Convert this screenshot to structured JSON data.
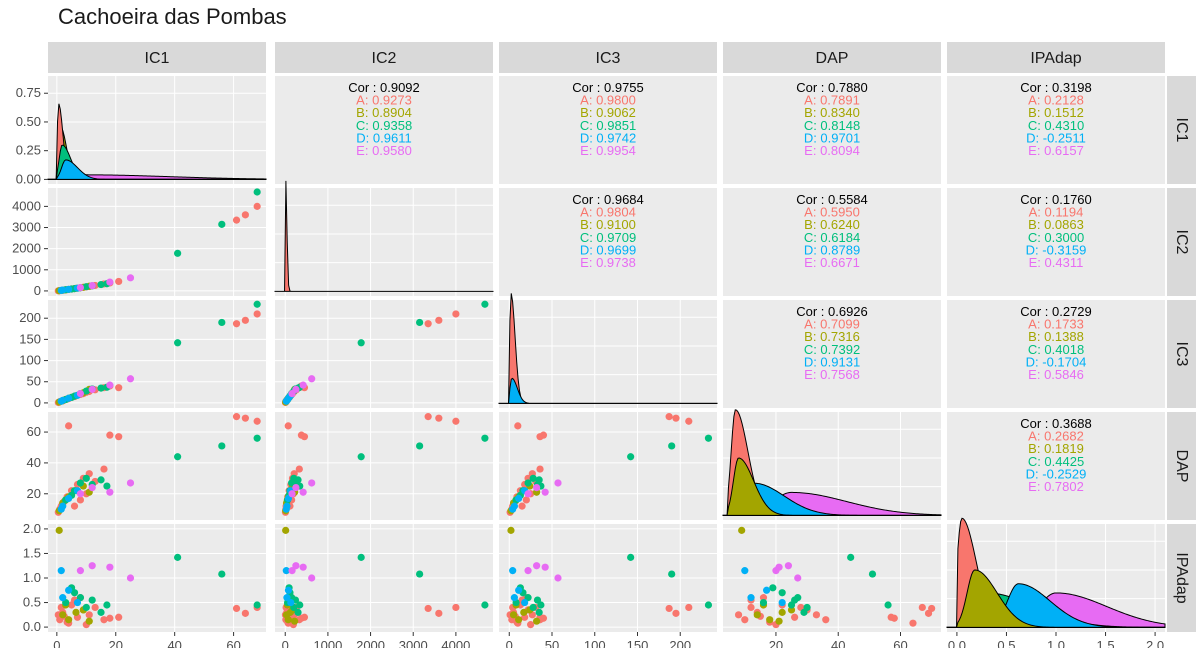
{
  "chart_data": {
    "type": "scatter",
    "title": "Cachoeira das Pombas",
    "variables": [
      "IC1",
      "IC2",
      "IC3",
      "DAP",
      "IPAdap"
    ],
    "groups": [
      "A",
      "B",
      "C",
      "D",
      "E"
    ],
    "group_colors": [
      "#F8766D",
      "#A3A500",
      "#00BF7D",
      "#00B0F6",
      "#E76BF3"
    ],
    "panel_bg": "#EBEBEB",
    "strip_bg": "#D9D9D9",
    "grid": true,
    "axes": {
      "IC1": {
        "lim": [
          -3,
          71
        ],
        "ticks": [
          0,
          20,
          40,
          60
        ]
      },
      "IC2": {
        "lim": [
          -240,
          4870
        ],
        "ticks": [
          0,
          1000,
          2000,
          3000,
          4000
        ]
      },
      "IC3": {
        "lim": [
          -12,
          243
        ],
        "ticks": [
          0,
          50,
          100,
          150,
          200
        ]
      },
      "DAP": {
        "lim": [
          3,
          73
        ],
        "ticks": [
          20,
          40,
          60
        ]
      },
      "IPAdap": {
        "lim": [
          -0.1,
          2.1
        ],
        "ticks": [
          0.0,
          0.5,
          1.0,
          1.5,
          2.0
        ],
        "tick_labels": [
          "0.0",
          "0.5",
          "1.0",
          "1.5",
          "2.0"
        ]
      }
    },
    "diag_density_axis": {
      "lim": [
        -0.04,
        0.9
      ],
      "ticks": [
        0.0,
        0.25,
        0.5,
        0.75
      ],
      "tick_labels": [
        "0.00",
        "0.25",
        "0.50",
        "0.75"
      ]
    },
    "correlations": [
      {
        "row": "IC1",
        "col": "IC2",
        "lines": [
          "Cor : 0.9092",
          "A: 0.9273",
          "B: 0.8904",
          "C: 0.9358",
          "D: 0.9611",
          "E: 0.9580"
        ]
      },
      {
        "row": "IC1",
        "col": "IC3",
        "lines": [
          "Cor : 0.9755",
          "A: 0.9800",
          "B: 0.9062",
          "C: 0.9851",
          "D: 0.9742",
          "E: 0.9954"
        ]
      },
      {
        "row": "IC1",
        "col": "DAP",
        "lines": [
          "Cor : 0.7880",
          "A: 0.7891",
          "B: 0.8340",
          "C: 0.8148",
          "D: 0.9701",
          "E: 0.8094"
        ]
      },
      {
        "row": "IC1",
        "col": "IPAdap",
        "lines": [
          "Cor : 0.3198",
          "A: 0.2128",
          "B: 0.1512",
          "C: 0.4310",
          "D: -0.2511",
          "E: 0.6157"
        ]
      },
      {
        "row": "IC2",
        "col": "IC3",
        "lines": [
          "Cor : 0.9684",
          "A: 0.9804",
          "B: 0.9100",
          "C: 0.9709",
          "D: 0.9699",
          "E: 0.9738"
        ]
      },
      {
        "row": "IC2",
        "col": "DAP",
        "lines": [
          "Cor : 0.5584",
          "A: 0.5950",
          "B: 0.6240",
          "C: 0.6184",
          "D: 0.8789",
          "E: 0.6671"
        ]
      },
      {
        "row": "IC2",
        "col": "IPAdap",
        "lines": [
          "Cor : 0.1760",
          "A: 0.1194",
          "B: 0.0863",
          "C: 0.3000",
          "D: -0.3159",
          "E: 0.4311"
        ]
      },
      {
        "row": "IC3",
        "col": "DAP",
        "lines": [
          "Cor : 0.6926",
          "A: 0.7099",
          "B: 0.7316",
          "C: 0.7392",
          "D: 0.9131",
          "E: 0.7568"
        ]
      },
      {
        "row": "IC3",
        "col": "IPAdap",
        "lines": [
          "Cor : 0.2729",
          "A: 0.1733",
          "B: 0.1388",
          "C: 0.4018",
          "D: -0.1704",
          "E: 0.5846"
        ]
      },
      {
        "row": "DAP",
        "col": "IPAdap",
        "lines": [
          "Cor : 0.3688",
          "A: 0.2682",
          "B: 0.1819",
          "C: 0.4425",
          "D: -0.2529",
          "E: 0.7802"
        ]
      }
    ],
    "points": [
      {
        "g": "A",
        "IC1": 1.0,
        "IC2": 15,
        "IC3": 3,
        "DAP": 10,
        "IPAdap": 0.15
      },
      {
        "g": "A",
        "IC1": 2.0,
        "IC2": 35,
        "IC3": 5,
        "DAP": 14,
        "IPAdap": 0.3
      },
      {
        "g": "A",
        "IC1": 3.5,
        "IC2": 60,
        "IC3": 9,
        "DAP": 18,
        "IPAdap": 0.1
      },
      {
        "g": "A",
        "IC1": 5.0,
        "IC2": 90,
        "IC3": 13,
        "DAP": 22,
        "IPAdap": 0.45
      },
      {
        "g": "A",
        "IC1": 7.0,
        "IC2": 130,
        "IC3": 18,
        "DAP": 26,
        "IPAdap": 0.2
      },
      {
        "g": "A",
        "IC1": 9.0,
        "IC2": 170,
        "IC3": 22,
        "DAP": 30,
        "IPAdap": 0.35
      },
      {
        "g": "A",
        "IC1": 11.0,
        "IC2": 210,
        "IC3": 27,
        "DAP": 33,
        "IPAdap": 0.25
      },
      {
        "g": "A",
        "IC1": 13.0,
        "IC2": 260,
        "IC3": 31,
        "DAP": 28,
        "IPAdap": 0.4
      },
      {
        "g": "A",
        "IC1": 16.0,
        "IC2": 330,
        "IC3": 36,
        "DAP": 36,
        "IPAdap": 0.15
      },
      {
        "g": "A",
        "IC1": 18.0,
        "IC2": 380,
        "IC3": 40,
        "DAP": 58,
        "IPAdap": 0.18
      },
      {
        "g": "A",
        "IC1": 21.0,
        "IC2": 450,
        "IC3": 36,
        "DAP": 57,
        "IPAdap": 0.2
      },
      {
        "g": "A",
        "IC1": 4.0,
        "IC2": 70,
        "IC3": 10,
        "DAP": 64,
        "IPAdap": 0.08
      },
      {
        "g": "A",
        "IC1": 6.0,
        "IC2": 110,
        "IC3": 15,
        "DAP": 12,
        "IPAdap": 0.55
      },
      {
        "g": "A",
        "IC1": 8.0,
        "IC2": 150,
        "IC3": 20,
        "DAP": 16,
        "IPAdap": 0.6
      },
      {
        "g": "A",
        "IC1": 10.0,
        "IC2": 190,
        "IC3": 25,
        "DAP": 20,
        "IPAdap": 0.05
      },
      {
        "g": "A",
        "IC1": 0.5,
        "IC2": 5,
        "IC3": 1,
        "DAP": 8,
        "IPAdap": 0.25
      },
      {
        "g": "A",
        "IC1": 1.5,
        "IC2": 20,
        "IC3": 4,
        "DAP": 12,
        "IPAdap": 0.4
      },
      {
        "g": "A",
        "IC1": 2.5,
        "IC2": 45,
        "IC3": 7,
        "DAP": 15,
        "IPAdap": 0.22
      },
      {
        "g": "A",
        "IC1": 61.0,
        "IC2": 3350,
        "IC3": 187,
        "DAP": 70,
        "IPAdap": 0.38
      },
      {
        "g": "A",
        "IC1": 64.0,
        "IC2": 3600,
        "IC3": 195,
        "DAP": 69,
        "IPAdap": 0.28
      },
      {
        "g": "A",
        "IC1": 68.0,
        "IC2": 4000,
        "IC3": 210,
        "DAP": 67,
        "IPAdap": 0.4
      },
      {
        "g": "B",
        "IC1": 2.0,
        "IC2": 30,
        "IC3": 5,
        "DAP": 14,
        "IPAdap": 0.25
      },
      {
        "g": "B",
        "IC1": 4.0,
        "IC2": 70,
        "IC3": 11,
        "DAP": 18,
        "IPAdap": 0.15
      },
      {
        "g": "B",
        "IC1": 6.5,
        "IC2": 120,
        "IC3": 17,
        "DAP": 22,
        "IPAdap": 0.3
      },
      {
        "g": "B",
        "IC1": 9.0,
        "IC2": 170,
        "IC3": 24,
        "DAP": 25,
        "IPAdap": 0.35
      },
      {
        "g": "B",
        "IC1": 11.0,
        "IC2": 220,
        "IC3": 32,
        "DAP": 21,
        "IPAdap": 0.12
      },
      {
        "g": "B",
        "IC1": 3.0,
        "IC2": 50,
        "IC3": 8,
        "DAP": 16,
        "IPAdap": 0.45
      },
      {
        "g": "B",
        "IC1": 0.8,
        "IC2": 10,
        "IC3": 2,
        "DAP": 9,
        "IPAdap": 1.97
      },
      {
        "g": "C",
        "IC1": 3.0,
        "IC2": 55,
        "IC3": 8,
        "DAP": 16,
        "IPAdap": 0.5
      },
      {
        "g": "C",
        "IC1": 6.0,
        "IC2": 110,
        "IC3": 16,
        "DAP": 22,
        "IPAdap": 0.7
      },
      {
        "g": "C",
        "IC1": 8.0,
        "IC2": 150,
        "IC3": 22,
        "DAP": 27,
        "IPAdap": 0.6
      },
      {
        "g": "C",
        "IC1": 10.0,
        "IC2": 200,
        "IC3": 28,
        "DAP": 30,
        "IPAdap": 0.4
      },
      {
        "g": "C",
        "IC1": 12.0,
        "IC2": 240,
        "IC3": 33,
        "DAP": 26,
        "IPAdap": 0.55
      },
      {
        "g": "C",
        "IC1": 15.0,
        "IC2": 300,
        "IC3": 35,
        "DAP": 29,
        "IPAdap": 0.3
      },
      {
        "g": "C",
        "IC1": 17.0,
        "IC2": 340,
        "IC3": 37,
        "DAP": 25,
        "IPAdap": 0.45
      },
      {
        "g": "C",
        "IC1": 41.0,
        "IC2": 1780,
        "IC3": 142,
        "DAP": 44,
        "IPAdap": 1.42
      },
      {
        "g": "C",
        "IC1": 56.0,
        "IC2": 3150,
        "IC3": 190,
        "DAP": 51,
        "IPAdap": 1.08
      },
      {
        "g": "C",
        "IC1": 68.0,
        "IC2": 4680,
        "IC3": 233,
        "DAP": 56,
        "IPAdap": 0.45
      },
      {
        "g": "C",
        "IC1": 5.0,
        "IC2": 90,
        "IC3": 13,
        "DAP": 19,
        "IPAdap": 0.8
      },
      {
        "g": "D",
        "IC1": 2.0,
        "IC2": 40,
        "IC3": 6,
        "DAP": 12,
        "IPAdap": 0.6
      },
      {
        "g": "D",
        "IC1": 4.0,
        "IC2": 75,
        "IC3": 11,
        "DAP": 17,
        "IPAdap": 0.75
      },
      {
        "g": "D",
        "IC1": 7.0,
        "IC2": 130,
        "IC3": 18,
        "DAP": 22,
        "IPAdap": 0.5
      },
      {
        "g": "D",
        "IC1": 1.5,
        "IC2": 25,
        "IC3": 4,
        "DAP": 10,
        "IPAdap": 1.15
      },
      {
        "g": "E",
        "IC1": 12.0,
        "IC2": 250,
        "IC3": 32,
        "DAP": 24,
        "IPAdap": 1.25
      },
      {
        "g": "E",
        "IC1": 18.0,
        "IC2": 420,
        "IC3": 42,
        "DAP": 21,
        "IPAdap": 1.22
      },
      {
        "g": "E",
        "IC1": 25.0,
        "IC2": 620,
        "IC3": 57,
        "DAP": 27,
        "IPAdap": 1.0
      },
      {
        "g": "E",
        "IC1": 8.0,
        "IC2": 160,
        "IC3": 22,
        "DAP": 20,
        "IPAdap": 1.15
      }
    ],
    "densities": {
      "IC1": [
        {
          "g": "A",
          "peak_x": 0.6,
          "height": 0.66,
          "sd": 0.9
        },
        {
          "g": "B",
          "peak_x": 1.2,
          "height": 0.46,
          "sd": 1.3
        },
        {
          "g": "C",
          "peak_x": 1.8,
          "height": 0.3,
          "sd": 1.8
        },
        {
          "g": "D",
          "peak_x": 3.0,
          "height": 0.17,
          "sd": 2.5
        },
        {
          "g": "E",
          "peak_x": 9.0,
          "height": 0.04,
          "sd": 18.0
        }
      ],
      "IC2": [
        {
          "g": "A",
          "peak_x": 10,
          "height": 0.98,
          "sd": 18
        }
      ],
      "IC3": [
        {
          "g": "A",
          "peak_x": 2,
          "height": 0.96,
          "sd": 3
        },
        {
          "g": "D",
          "peak_x": 3,
          "height": 0.22,
          "sd": 4
        }
      ],
      "DAP": [
        {
          "g": "A",
          "peak_x": 7,
          "height": 0.92,
          "sd": 2.5
        },
        {
          "g": "B",
          "peak_x": 8,
          "height": 0.5,
          "sd": 3.0
        },
        {
          "g": "D",
          "peak_x": 13,
          "height": 0.28,
          "sd": 6.0
        },
        {
          "g": "E",
          "peak_x": 25,
          "height": 0.2,
          "sd": 11.0
        }
      ],
      "IPAdap": [
        {
          "g": "A",
          "peak_x": 0.05,
          "height": 0.95,
          "sd": 0.09
        },
        {
          "g": "B",
          "peak_x": 0.18,
          "height": 0.5,
          "sd": 0.14
        },
        {
          "g": "C",
          "peak_x": 0.3,
          "height": 0.3,
          "sd": 0.3
        },
        {
          "g": "D",
          "peak_x": 0.62,
          "height": 0.38,
          "sd": 0.2
        },
        {
          "g": "E",
          "peak_x": 1.0,
          "height": 0.3,
          "sd": 0.32
        }
      ]
    }
  }
}
